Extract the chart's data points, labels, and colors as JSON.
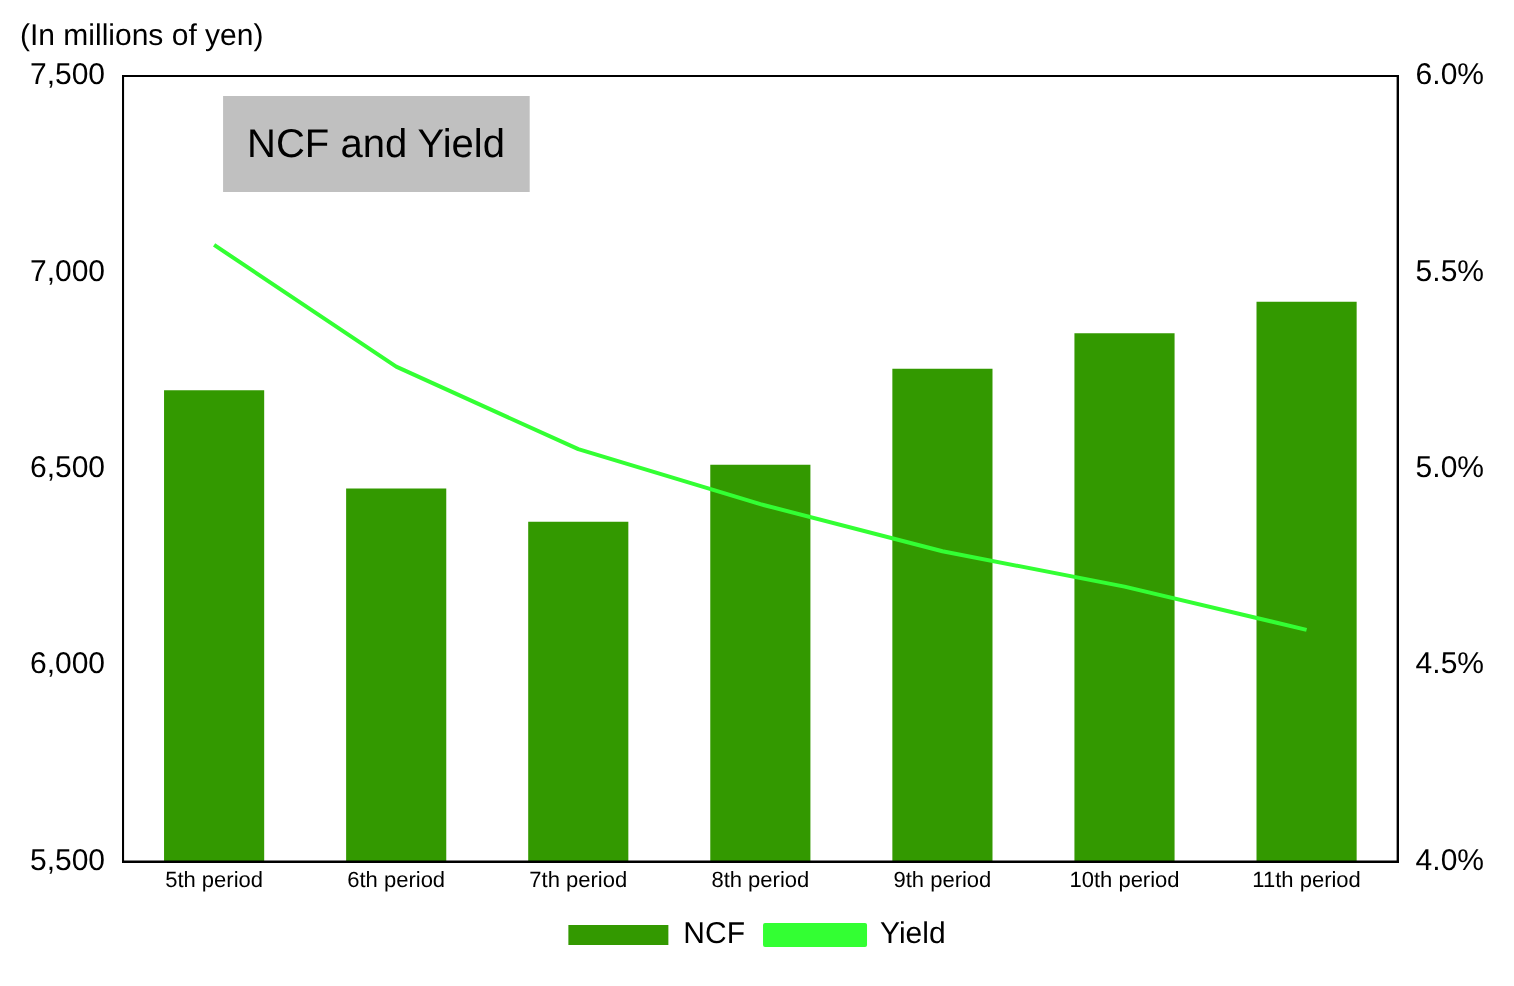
{
  "chart_data": {
    "type": "bar",
    "title": "NCF and Yield",
    "ylabel": "(In millions of yen)",
    "categories": [
      "5th period",
      "6th period",
      "7th period",
      "8th period",
      "9th period",
      "10th period",
      "11th period"
    ],
    "series": [
      {
        "name": "NCF",
        "color": "#339900",
        "values": [
          6700,
          6450,
          6365,
          6510,
          6755,
          6845,
          6925
        ]
      },
      {
        "name": "Yield",
        "type": "line",
        "axis": "y2",
        "color": "#33ff33",
        "values": [
          5.57,
          5.26,
          5.05,
          4.91,
          4.79,
          4.7,
          4.59
        ]
      }
    ],
    "ylim": [
      5500,
      7500
    ],
    "yticks": [
      {
        "value": 5500,
        "label": "5,500"
      },
      {
        "value": 6000,
        "label": "6,000"
      },
      {
        "value": 6500,
        "label": "6,500"
      },
      {
        "value": 7000,
        "label": "7,000"
      },
      {
        "value": 7500,
        "label": "7,500"
      }
    ],
    "y2lim": [
      4.0,
      6.0
    ],
    "y2ticks": [
      {
        "value": 4.0,
        "label": "4.0%"
      },
      {
        "value": 4.5,
        "label": "4.5%"
      },
      {
        "value": 5.0,
        "label": "5.0%"
      },
      {
        "value": 5.5,
        "label": "5.5%"
      },
      {
        "value": 6.0,
        "label": "6.0%"
      }
    ],
    "grid": false,
    "legend": "bottom",
    "marker": "none"
  }
}
